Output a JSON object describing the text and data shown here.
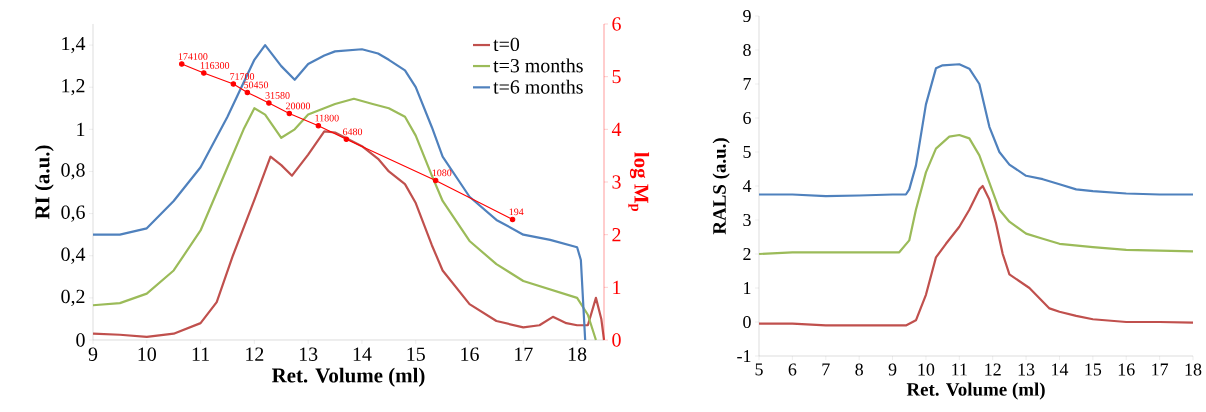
{
  "chart_data": [
    {
      "type": "line",
      "xlabel": "Ret. Volume (ml)",
      "ylabel": "RI (a.u.)",
      "y2label": "log M$_{p}$",
      "xlim": [
        9,
        18.5
      ],
      "ylim": [
        0,
        1.5
      ],
      "y2lim": [
        0,
        6
      ],
      "xticks": [
        9,
        10,
        11,
        12,
        13,
        14,
        15,
        16,
        17,
        18
      ],
      "yticks": [
        0,
        {
          "value": 0.2,
          "label": "0,2"
        },
        {
          "value": 0.4,
          "label": "0,4"
        },
        {
          "value": 0.6,
          "label": "0,6"
        },
        {
          "value": 0.8,
          "label": "0,8"
        },
        1,
        {
          "value": 1.2,
          "label": "1,2"
        },
        {
          "value": 1.4,
          "label": "1,4"
        }
      ],
      "y2ticks": [
        0,
        1,
        2,
        3,
        4,
        5,
        6
      ],
      "legend": "top right",
      "marker": "none",
      "series": [
        {
          "name": "t=0",
          "color": "#c0504d",
          "x": [
            9,
            9.5,
            10,
            10.5,
            11,
            11.3,
            11.6,
            12,
            12.3,
            12.5,
            12.7,
            13,
            13.3,
            13.5,
            14,
            14.3,
            14.5,
            14.8,
            15,
            15.3,
            15.5,
            16,
            16.5,
            17,
            17.3,
            17.55,
            17.8,
            18,
            18.2,
            18.35,
            18.45,
            18.5
          ],
          "values": [
            0.03,
            0.025,
            0.015,
            0.03,
            0.08,
            0.18,
            0.4,
            0.665,
            0.87,
            0.83,
            0.78,
            0.88,
            0.99,
            0.985,
            0.92,
            0.86,
            0.8,
            0.74,
            0.65,
            0.45,
            0.33,
            0.17,
            0.09,
            0.06,
            0.07,
            0.11,
            0.08,
            0.07,
            0.07,
            0.2,
            0.1,
            0
          ]
        },
        {
          "name": "t=3 months",
          "color": "#9bbb59",
          "x": [
            9,
            9.5,
            10,
            10.5,
            11,
            11.5,
            11.8,
            12,
            12.2,
            12.5,
            12.75,
            13,
            13.5,
            13.85,
            14.2,
            14.5,
            14.8,
            15,
            15.3,
            15.5,
            16,
            16.5,
            17,
            17.5,
            18,
            18.2,
            18.35
          ],
          "values": [
            0.165,
            0.175,
            0.22,
            0.33,
            0.52,
            0.82,
            1.0,
            1.1,
            1.07,
            0.96,
            1.0,
            1.07,
            1.12,
            1.145,
            1.12,
            1.1,
            1.06,
            0.97,
            0.78,
            0.66,
            0.47,
            0.36,
            0.28,
            0.24,
            0.2,
            0.12,
            0
          ]
        },
        {
          "name": "t=6 months",
          "color": "#4f81bd",
          "x": [
            9,
            9.5,
            10,
            10.5,
            11,
            11.5,
            12,
            12.2,
            12.5,
            12.75,
            13,
            13.3,
            13.5,
            14,
            14.3,
            14.5,
            14.8,
            15,
            15.3,
            15.5,
            16,
            16.5,
            17,
            17.5,
            18,
            18.07,
            18.15
          ],
          "values": [
            0.5,
            0.5,
            0.53,
            0.66,
            0.82,
            1.06,
            1.33,
            1.4,
            1.3,
            1.235,
            1.31,
            1.35,
            1.37,
            1.38,
            1.36,
            1.33,
            1.28,
            1.2,
            1.01,
            0.87,
            0.68,
            0.57,
            0.5,
            0.475,
            0.44,
            0.38,
            0
          ]
        },
        {
          "color": "#ff0000",
          "axis": "y2",
          "marker": "circle",
          "x": [
            10.65,
            11.06,
            11.61,
            11.87,
            12.27,
            12.65,
            13.19,
            13.71,
            15.37,
            16.8
          ],
          "values": [
            5.24,
            5.07,
            4.86,
            4.7,
            4.5,
            4.3,
            4.07,
            3.81,
            3.03,
            2.29
          ]
        }
      ],
      "annotations": [
        "174100",
        "116300",
        "71700",
        "50450",
        "31580",
        "20000",
        "11800",
        "6480",
        "1080",
        "194"
      ]
    },
    {
      "type": "line",
      "xlabel": "Ret. Volume (ml)",
      "ylabel": "RALS (a.u.)",
      "xlim": [
        5,
        18
      ],
      "ylim": [
        -1,
        9
      ],
      "xticks": [
        5,
        6,
        7,
        8,
        9,
        10,
        11,
        12,
        13,
        14,
        15,
        16,
        17,
        18
      ],
      "yticks": [
        -1,
        0,
        1,
        2,
        3,
        4,
        5,
        6,
        7,
        8,
        9
      ],
      "marker": "none",
      "series": [
        {
          "color": "#c0504d",
          "x": [
            5,
            6,
            7,
            8,
            9,
            9.4,
            9.7,
            10,
            10.3,
            10.6,
            11,
            11.3,
            11.6,
            11.7,
            11.9,
            12.1,
            12.3,
            12.5,
            12.8,
            13.1,
            13.4,
            13.7,
            14,
            14.5,
            15,
            16,
            17,
            18
          ],
          "values": [
            -0.05,
            -0.05,
            -0.1,
            -0.1,
            -0.1,
            -0.1,
            0.05,
            0.8,
            1.9,
            2.3,
            2.8,
            3.3,
            3.9,
            4.0,
            3.6,
            2.9,
            2.0,
            1.4,
            1.2,
            1.0,
            0.7,
            0.4,
            0.3,
            0.18,
            0.08,
            0,
            0,
            -0.02
          ]
        },
        {
          "color": "#9bbb59",
          "x": [
            5,
            6,
            7,
            8,
            9,
            9.2,
            9.5,
            9.7,
            10,
            10.3,
            10.7,
            11,
            11.3,
            11.6,
            11.9,
            12.2,
            12.5,
            13,
            13.5,
            14,
            15,
            16,
            17,
            18
          ],
          "values": [
            2.0,
            2.05,
            2.05,
            2.05,
            2.05,
            2.05,
            2.4,
            3.3,
            4.4,
            5.1,
            5.45,
            5.5,
            5.4,
            4.9,
            4.1,
            3.3,
            2.95,
            2.6,
            2.45,
            2.3,
            2.2,
            2.12,
            2.1,
            2.08
          ]
        },
        {
          "color": "#4f81bd",
          "x": [
            5,
            6,
            7,
            8,
            9,
            9.4,
            9.5,
            9.7,
            10,
            10.3,
            10.5,
            11,
            11.3,
            11.6,
            11.9,
            12.2,
            12.5,
            13,
            13.5,
            14,
            14.5,
            15,
            16,
            17,
            18
          ],
          "values": [
            3.75,
            3.75,
            3.7,
            3.72,
            3.75,
            3.75,
            3.9,
            4.6,
            6.4,
            7.46,
            7.55,
            7.58,
            7.45,
            7.0,
            5.74,
            5.0,
            4.63,
            4.3,
            4.2,
            4.05,
            3.9,
            3.85,
            3.78,
            3.75,
            3.75
          ]
        }
      ]
    }
  ]
}
